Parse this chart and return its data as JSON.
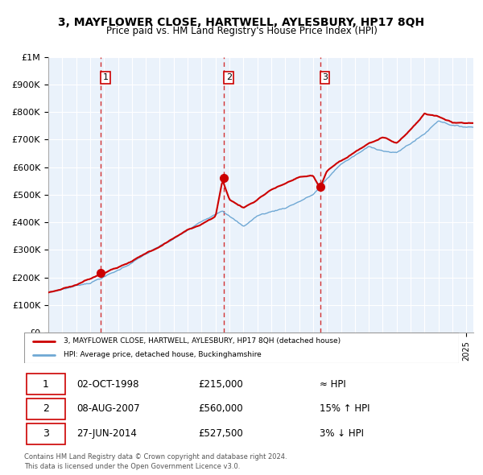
{
  "title": "3, MAYFLOWER CLOSE, HARTWELL, AYLESBURY, HP17 8QH",
  "subtitle": "Price paid vs. HM Land Registry's House Price Index (HPI)",
  "legend_line1": "3, MAYFLOWER CLOSE, HARTWELL, AYLESBURY, HP17 8QH (detached house)",
  "legend_line2": "HPI: Average price, detached house, Buckinghamshire",
  "sale_dates": [
    "02-OCT-1998",
    "08-AUG-2007",
    "27-JUN-2014"
  ],
  "sale_prices": [
    215000,
    560000,
    527500
  ],
  "sale_labels": [
    "1",
    "2",
    "3"
  ],
  "sale_hpi_notes": [
    "≈ HPI",
    "15% ↑ HPI",
    "3% ↓ HPI"
  ],
  "vline_years": [
    1998.75,
    2007.6,
    2014.5
  ],
  "footer1": "Contains HM Land Registry data © Crown copyright and database right 2024.",
  "footer2": "This data is licensed under the Open Government Licence v3.0.",
  "hpi_color": "#6fa8d4",
  "price_color": "#cc0000",
  "dot_color": "#cc0000",
  "vline_color": "#cc0000",
  "bg_color": "#eaf2fb",
  "grid_color": "#ffffff",
  "ylim": [
    0,
    1000000
  ],
  "xlim_start": 1995.0,
  "xlim_end": 2025.5
}
